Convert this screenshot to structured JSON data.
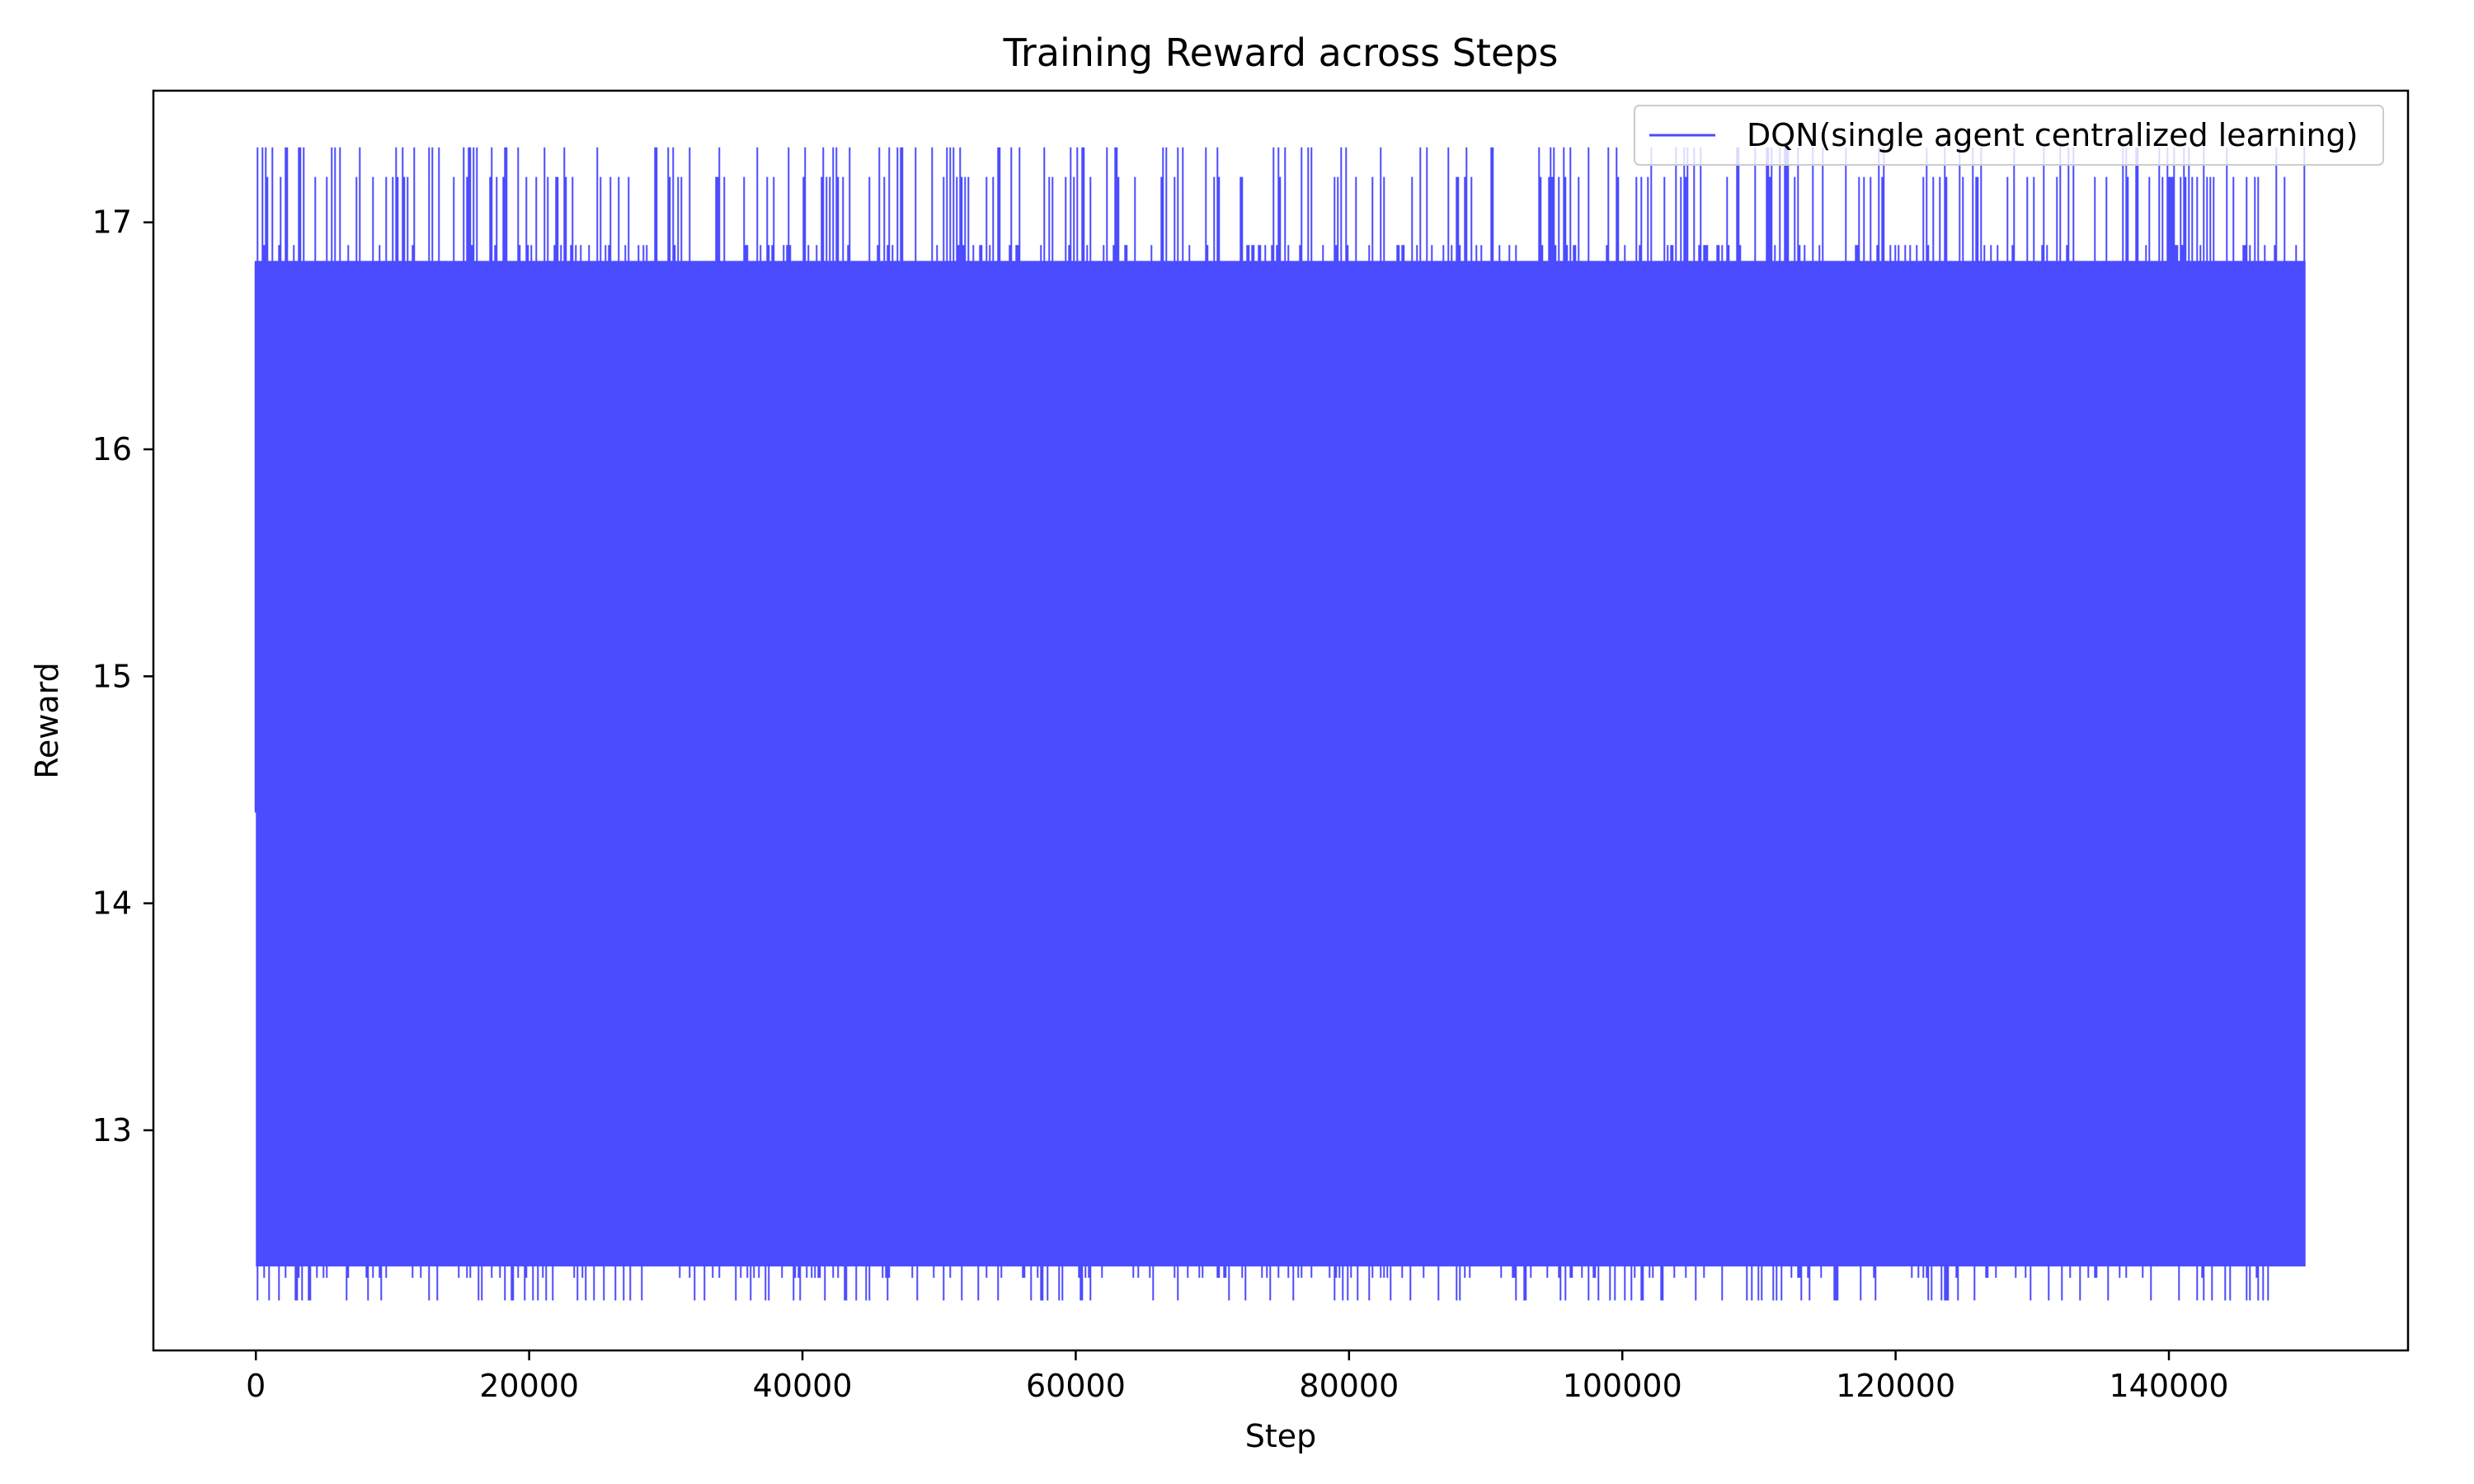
{
  "chart_data": {
    "type": "line",
    "title": "Training Reward across Steps",
    "xlabel": "Step",
    "ylabel": "Reward",
    "xlim": [
      -7500,
      157500
    ],
    "ylim": [
      12.03,
      17.58
    ],
    "x_ticks": [
      0,
      20000,
      40000,
      60000,
      80000,
      100000,
      120000,
      140000
    ],
    "x_tick_labels": [
      "0",
      "20000",
      "40000",
      "60000",
      "80000",
      "100000",
      "120000",
      "140000"
    ],
    "y_ticks": [
      13,
      14,
      15,
      16,
      17
    ],
    "y_tick_labels": [
      "13",
      "14",
      "15",
      "16",
      "17"
    ],
    "grid": false,
    "legend_position": "top-right",
    "series": [
      {
        "name": "DQN(single agent centralized learning)",
        "color": "#4b4bff",
        "x_start": 0,
        "x_end": 149999,
        "band_low": 12.4,
        "band_high": 16.83,
        "max": 17.33,
        "min": 12.25,
        "upper_spike_levels": [
          17.33,
          17.2,
          16.9
        ],
        "lower_spike_levels": [
          12.25,
          12.35,
          12.5
        ]
      }
    ]
  }
}
